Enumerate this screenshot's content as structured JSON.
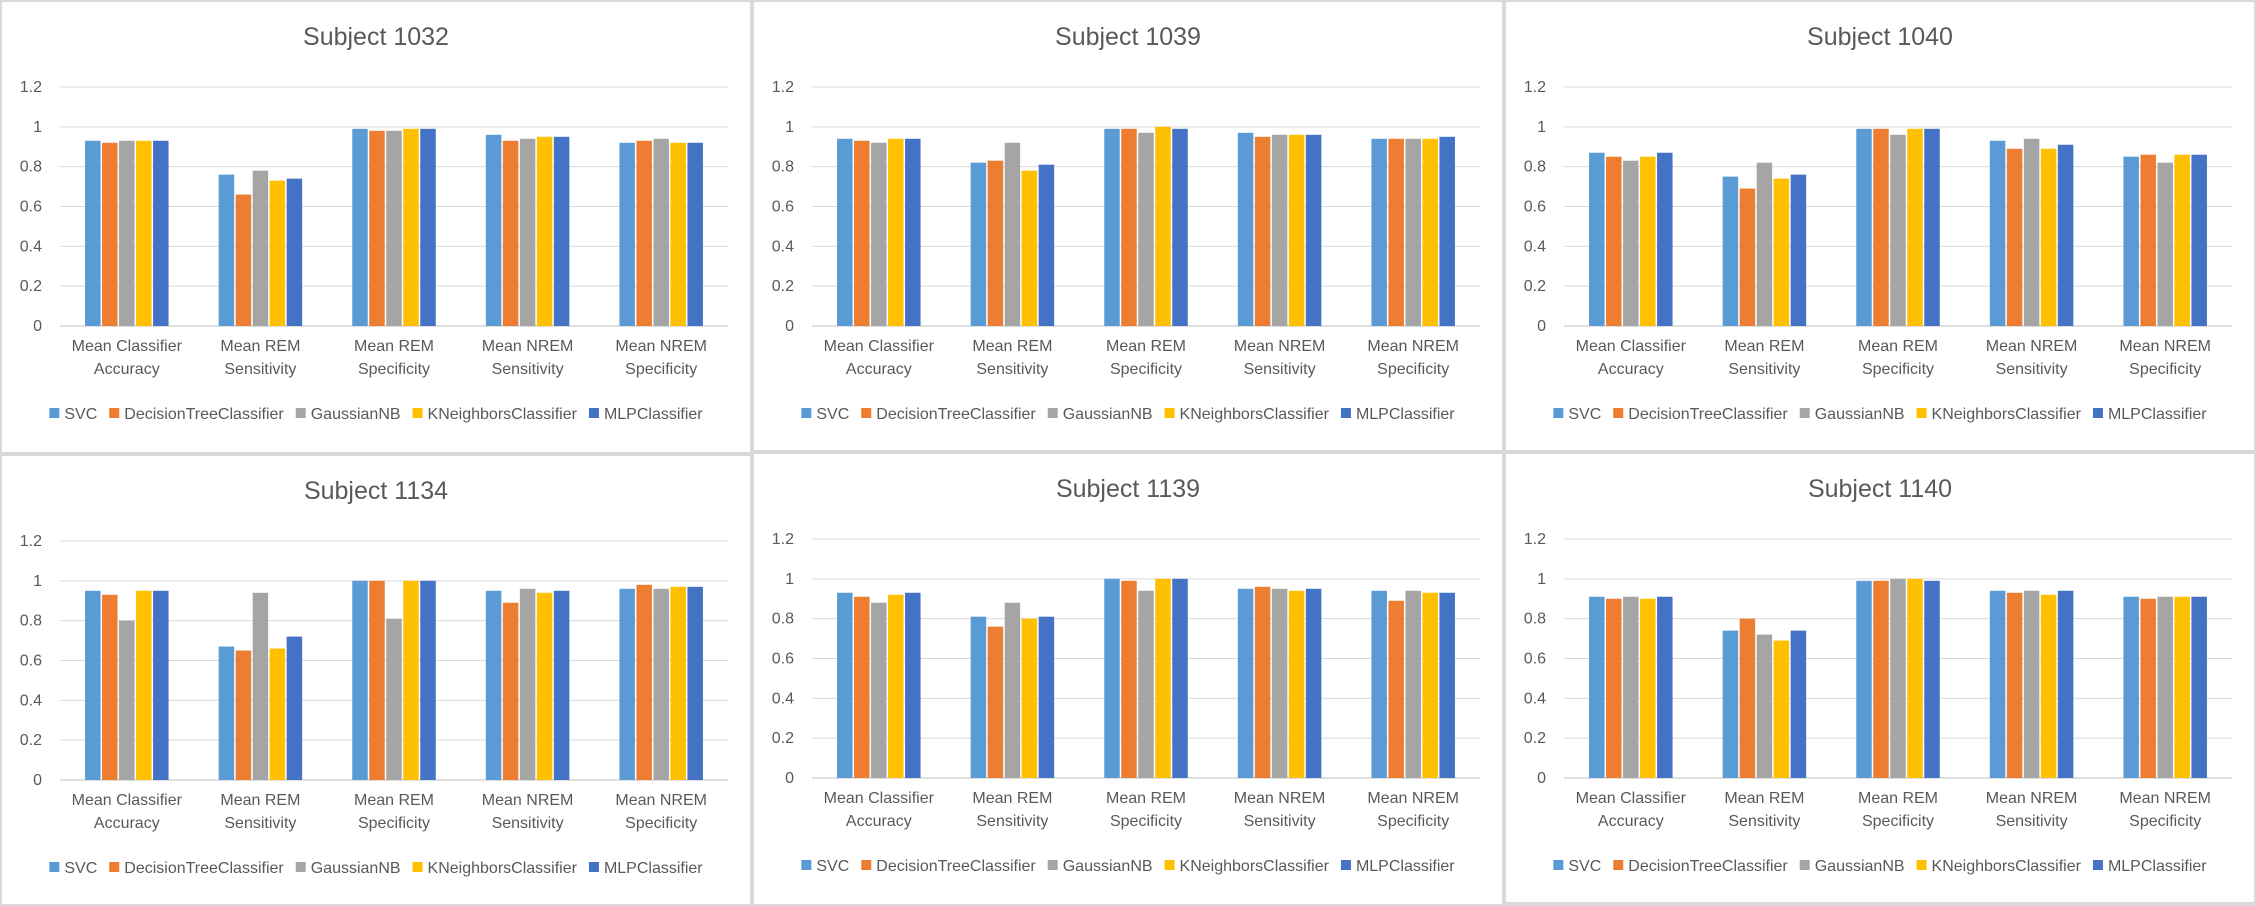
{
  "chart_data": [
    {
      "type": "bar",
      "title": "Subject 1032",
      "categories": [
        "Mean Classifier Accuracy",
        "Mean REM Sensitivity",
        "Mean REM Specificity",
        "Mean NREM Sensitivity",
        "Mean NREM Specificity"
      ],
      "category_lines": [
        [
          "Mean Classifier",
          "Accuracy"
        ],
        [
          "Mean REM",
          "Sensitivity"
        ],
        [
          "Mean REM",
          "Specificity"
        ],
        [
          "Mean NREM",
          "Sensitivity"
        ],
        [
          "Mean NREM",
          "Specificity"
        ]
      ],
      "yticks": [
        "0",
        "0.2",
        "0.4",
        "0.6",
        "0.8",
        "1",
        "1.2"
      ],
      "ylim": [
        0,
        1.2
      ],
      "grid": true,
      "legend_position": "bottom",
      "series": [
        {
          "name": "SVC",
          "color": "#5B9BD5",
          "values": [
            0.93,
            0.76,
            0.99,
            0.96,
            0.92
          ]
        },
        {
          "name": "DecisionTreeClassifier",
          "color": "#ED7D31",
          "values": [
            0.92,
            0.66,
            0.98,
            0.93,
            0.93
          ]
        },
        {
          "name": "GaussianNB",
          "color": "#A5A5A5",
          "values": [
            0.93,
            0.78,
            0.98,
            0.94,
            0.94
          ]
        },
        {
          "name": "KNeighborsClassifier",
          "color": "#FFC000",
          "values": [
            0.93,
            0.73,
            0.99,
            0.95,
            0.92
          ]
        },
        {
          "name": "MLPClassifier",
          "color": "#4472C4",
          "values": [
            0.93,
            0.74,
            0.99,
            0.95,
            0.92
          ]
        }
      ]
    },
    {
      "type": "bar",
      "title": "Subject 1039",
      "categories": [
        "Mean Classifier Accuracy",
        "Mean REM Sensitivity",
        "Mean REM Specificity",
        "Mean NREM Sensitivity",
        "Mean NREM Specificity"
      ],
      "category_lines": [
        [
          "Mean Classifier",
          "Accuracy"
        ],
        [
          "Mean REM",
          "Sensitivity"
        ],
        [
          "Mean REM",
          "Specificity"
        ],
        [
          "Mean NREM",
          "Sensitivity"
        ],
        [
          "Mean NREM",
          "Specificity"
        ]
      ],
      "yticks": [
        "0",
        "0.2",
        "0.4",
        "0.6",
        "0.8",
        "1",
        "1.2"
      ],
      "ylim": [
        0,
        1.2
      ],
      "grid": true,
      "legend_position": "bottom",
      "series": [
        {
          "name": "SVC",
          "color": "#5B9BD5",
          "values": [
            0.94,
            0.82,
            0.99,
            0.97,
            0.94
          ]
        },
        {
          "name": "DecisionTreeClassifier",
          "color": "#ED7D31",
          "values": [
            0.93,
            0.83,
            0.99,
            0.95,
            0.94
          ]
        },
        {
          "name": "GaussianNB",
          "color": "#A5A5A5",
          "values": [
            0.92,
            0.92,
            0.97,
            0.96,
            0.94
          ]
        },
        {
          "name": "KNeighborsClassifier",
          "color": "#FFC000",
          "values": [
            0.94,
            0.78,
            1.0,
            0.96,
            0.94
          ]
        },
        {
          "name": "MLPClassifier",
          "color": "#4472C4",
          "values": [
            0.94,
            0.81,
            0.99,
            0.96,
            0.95
          ]
        }
      ]
    },
    {
      "type": "bar",
      "title": "Subject 1040",
      "categories": [
        "Mean Classifier Accuracy",
        "Mean REM Sensitivity",
        "Mean REM Specificity",
        "Mean NREM Sensitivity",
        "Mean NREM Specificity"
      ],
      "category_lines": [
        [
          "Mean Classifier",
          "Accuracy"
        ],
        [
          "Mean REM",
          "Sensitivity"
        ],
        [
          "Mean REM",
          "Specificity"
        ],
        [
          "Mean NREM",
          "Sensitivity"
        ],
        [
          "Mean NREM",
          "Specificity"
        ]
      ],
      "yticks": [
        "0",
        "0.2",
        "0.4",
        "0.6",
        "0.8",
        "1",
        "1.2"
      ],
      "ylim": [
        0,
        1.2
      ],
      "grid": true,
      "legend_position": "bottom",
      "series": [
        {
          "name": "SVC",
          "color": "#5B9BD5",
          "values": [
            0.87,
            0.75,
            0.99,
            0.93,
            0.85
          ]
        },
        {
          "name": "DecisionTreeClassifier",
          "color": "#ED7D31",
          "values": [
            0.85,
            0.69,
            0.99,
            0.89,
            0.86
          ]
        },
        {
          "name": "GaussianNB",
          "color": "#A5A5A5",
          "values": [
            0.83,
            0.82,
            0.96,
            0.94,
            0.82
          ]
        },
        {
          "name": "KNeighborsClassifier",
          "color": "#FFC000",
          "values": [
            0.85,
            0.74,
            0.99,
            0.89,
            0.86
          ]
        },
        {
          "name": "MLPClassifier",
          "color": "#4472C4",
          "values": [
            0.87,
            0.76,
            0.99,
            0.91,
            0.86
          ]
        }
      ]
    },
    {
      "type": "bar",
      "title": "Subject 1134",
      "categories": [
        "Mean Classifier Accuracy",
        "Mean REM Sensitivity",
        "Mean REM Specificity",
        "Mean NREM Sensitivity",
        "Mean NREM Specificity"
      ],
      "category_lines": [
        [
          "Mean Classifier",
          "Accuracy"
        ],
        [
          "Mean REM",
          "Sensitivity"
        ],
        [
          "Mean REM",
          "Specificity"
        ],
        [
          "Mean NREM",
          "Sensitivity"
        ],
        [
          "Mean NREM",
          "Specificity"
        ]
      ],
      "yticks": [
        "0",
        "0.2",
        "0.4",
        "0.6",
        "0.8",
        "1",
        "1.2"
      ],
      "ylim": [
        0,
        1.2
      ],
      "grid": true,
      "legend_position": "bottom",
      "series": [
        {
          "name": "SVC",
          "color": "#5B9BD5",
          "values": [
            0.95,
            0.67,
            1.0,
            0.95,
            0.96
          ]
        },
        {
          "name": "DecisionTreeClassifier",
          "color": "#ED7D31",
          "values": [
            0.93,
            0.65,
            1.0,
            0.89,
            0.98
          ]
        },
        {
          "name": "GaussianNB",
          "color": "#A5A5A5",
          "values": [
            0.8,
            0.94,
            0.81,
            0.96,
            0.96
          ]
        },
        {
          "name": "KNeighborsClassifier",
          "color": "#FFC000",
          "values": [
            0.95,
            0.66,
            1.0,
            0.94,
            0.97
          ]
        },
        {
          "name": "MLPClassifier",
          "color": "#4472C4",
          "values": [
            0.95,
            0.72,
            1.0,
            0.95,
            0.97
          ]
        }
      ]
    },
    {
      "type": "bar",
      "title": "Subject 1139",
      "categories": [
        "Mean Classifier Accuracy",
        "Mean REM Sensitivity",
        "Mean REM Specificity",
        "Mean NREM Sensitivity",
        "Mean NREM Specificity"
      ],
      "category_lines": [
        [
          "Mean Classifier",
          "Accuracy"
        ],
        [
          "Mean REM",
          "Sensitivity"
        ],
        [
          "Mean REM",
          "Specificity"
        ],
        [
          "Mean NREM",
          "Sensitivity"
        ],
        [
          "Mean NREM",
          "Specificity"
        ]
      ],
      "yticks": [
        "0",
        "0.2",
        "0.4",
        "0.6",
        "0.8",
        "1",
        "1.2"
      ],
      "ylim": [
        0,
        1.2
      ],
      "grid": true,
      "legend_position": "bottom",
      "series": [
        {
          "name": "SVC",
          "color": "#5B9BD5",
          "values": [
            0.93,
            0.81,
            1.0,
            0.95,
            0.94
          ]
        },
        {
          "name": "DecisionTreeClassifier",
          "color": "#ED7D31",
          "values": [
            0.91,
            0.76,
            0.99,
            0.96,
            0.89
          ]
        },
        {
          "name": "GaussianNB",
          "color": "#A5A5A5",
          "values": [
            0.88,
            0.88,
            0.94,
            0.95,
            0.94
          ]
        },
        {
          "name": "KNeighborsClassifier",
          "color": "#FFC000",
          "values": [
            0.92,
            0.8,
            1.0,
            0.94,
            0.93
          ]
        },
        {
          "name": "MLPClassifier",
          "color": "#4472C4",
          "values": [
            0.93,
            0.81,
            1.0,
            0.95,
            0.93
          ]
        }
      ]
    },
    {
      "type": "bar",
      "title": "Subject 1140",
      "categories": [
        "Mean Classifier Accuracy",
        "Mean REM Sensitivity",
        "Mean REM Specificity",
        "Mean NREM Sensitivity",
        "Mean NREM Specificity"
      ],
      "category_lines": [
        [
          "Mean Classifier",
          "Accuracy"
        ],
        [
          "Mean REM",
          "Sensitivity"
        ],
        [
          "Mean REM",
          "Specificity"
        ],
        [
          "Mean NREM",
          "Sensitivity"
        ],
        [
          "Mean NREM",
          "Specificity"
        ]
      ],
      "yticks": [
        "0",
        "0.2",
        "0.4",
        "0.6",
        "0.8",
        "1",
        "1.2"
      ],
      "ylim": [
        0,
        1.2
      ],
      "grid": true,
      "legend_position": "bottom",
      "series": [
        {
          "name": "SVC",
          "color": "#5B9BD5",
          "values": [
            0.91,
            0.74,
            0.99,
            0.94,
            0.91
          ]
        },
        {
          "name": "DecisionTreeClassifier",
          "color": "#ED7D31",
          "values": [
            0.9,
            0.8,
            0.99,
            0.93,
            0.9
          ]
        },
        {
          "name": "GaussianNB",
          "color": "#A5A5A5",
          "values": [
            0.91,
            0.72,
            1.0,
            0.94,
            0.91
          ]
        },
        {
          "name": "KNeighborsClassifier",
          "color": "#FFC000",
          "values": [
            0.9,
            0.69,
            1.0,
            0.92,
            0.91
          ]
        },
        {
          "name": "MLPClassifier",
          "color": "#4472C4",
          "values": [
            0.91,
            0.74,
            0.99,
            0.94,
            0.91
          ]
        }
      ]
    }
  ]
}
